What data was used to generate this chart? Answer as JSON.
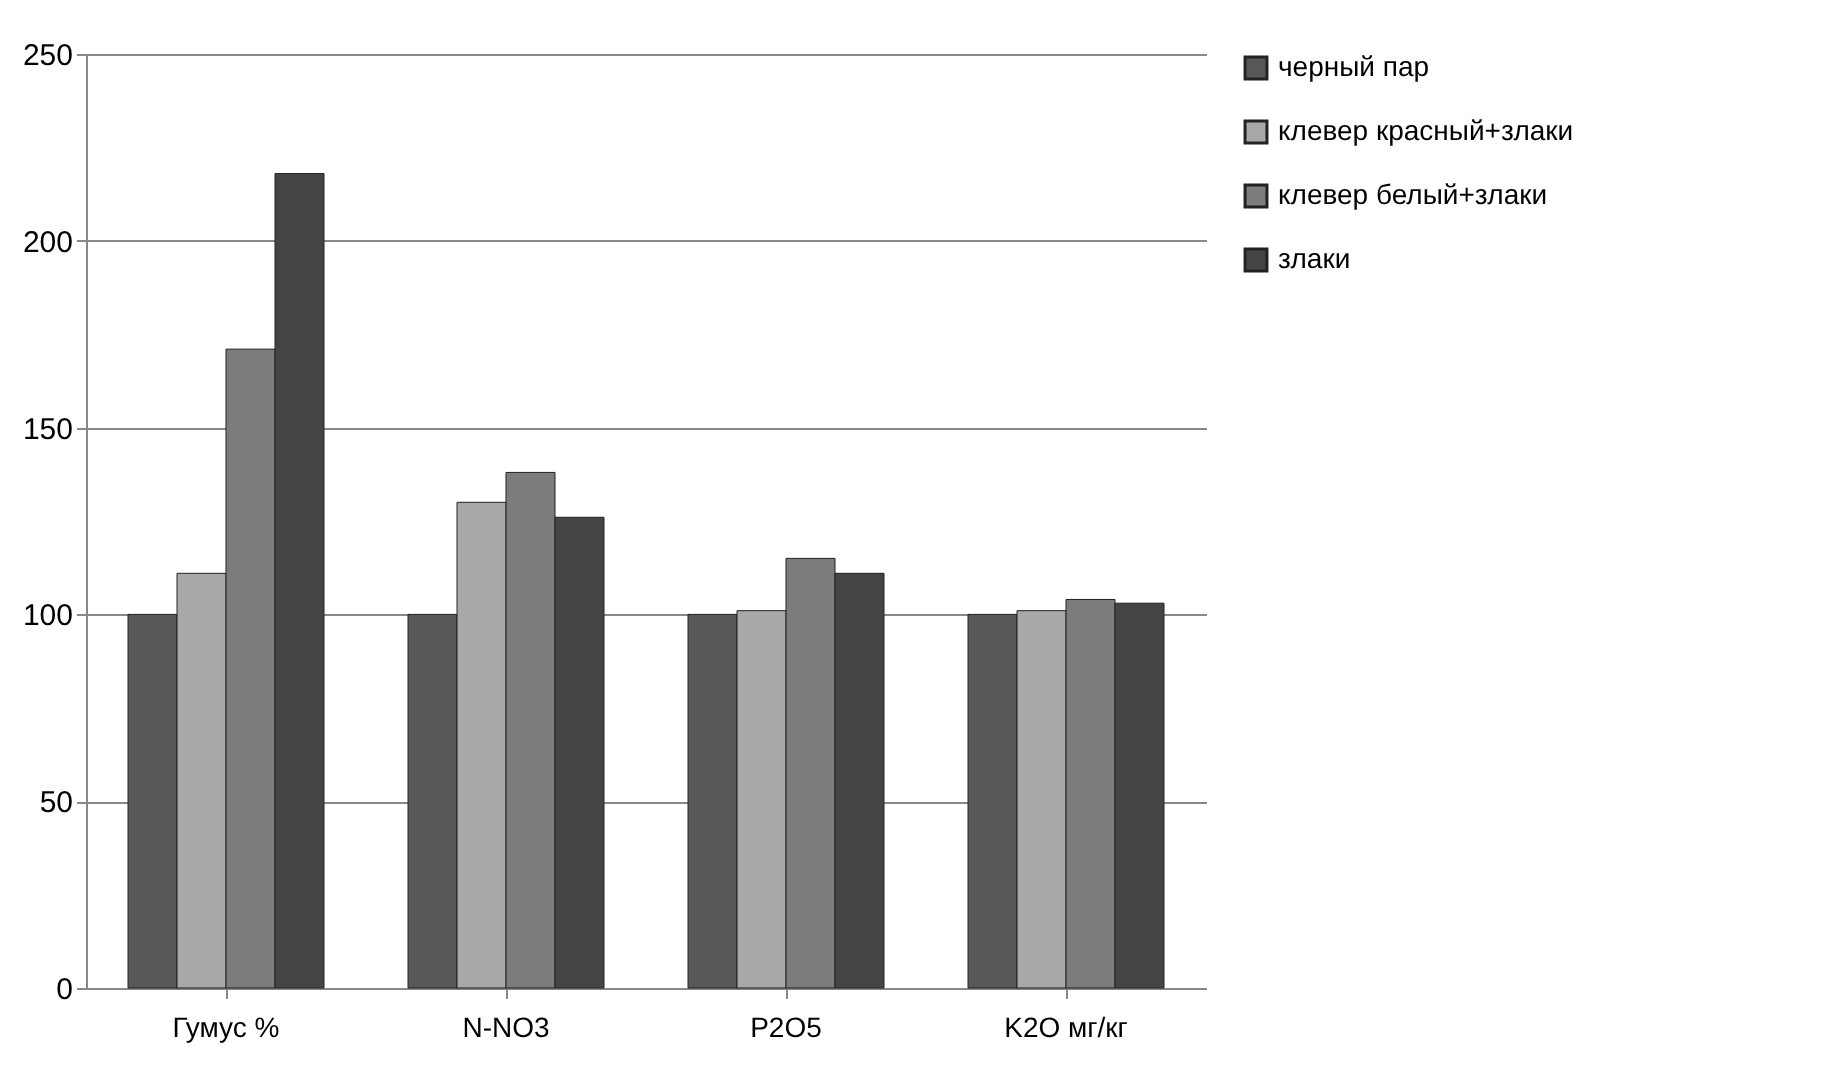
{
  "chart_data": {
    "type": "bar",
    "categories": [
      "Гумус %",
      "N-NO3",
      "P2O5",
      "K2O мг/кг"
    ],
    "series": [
      {
        "name": "черный пар",
        "color": "#585858",
        "values": [
          100,
          100,
          100,
          100
        ]
      },
      {
        "name": "клевер красный+злаки",
        "color": "#a8a8a8",
        "values": [
          111,
          130,
          101,
          101
        ]
      },
      {
        "name": "клевер белый+злаки",
        "color": "#7c7c7c",
        "values": [
          171,
          138,
          115,
          104
        ]
      },
      {
        "name": "злаки",
        "color": "#444444",
        "values": [
          218,
          126,
          111,
          103
        ]
      }
    ],
    "ylim": [
      0,
      250
    ],
    "yticks": [
      0,
      50,
      100,
      150,
      200,
      250
    ],
    "grid": "y",
    "legend": "right"
  }
}
